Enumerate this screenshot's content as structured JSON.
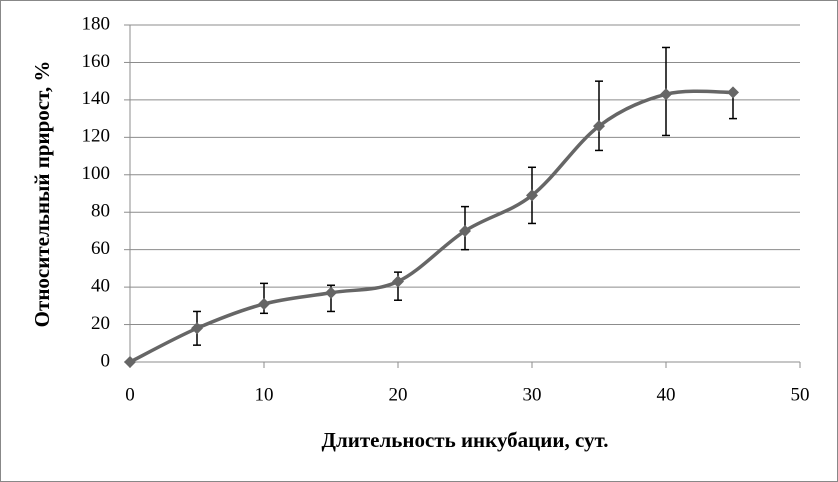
{
  "chart_data": {
    "type": "line",
    "x_label": "Длительность инкубации, сут.",
    "y_label": "Относительный прирост, %",
    "x": [
      0,
      5,
      10,
      15,
      20,
      25,
      30,
      35,
      40,
      45
    ],
    "values": [
      0,
      18,
      31,
      37,
      43,
      70,
      89,
      126,
      143,
      144
    ],
    "err_plus": [
      0,
      9,
      11,
      4,
      5,
      13,
      15,
      24,
      25,
      0
    ],
    "err_minus": [
      0,
      9,
      5,
      10,
      10,
      10,
      15,
      13,
      22,
      14
    ],
    "color": "#666666",
    "xlim": [
      0,
      50
    ],
    "xticks": [
      0,
      10,
      20,
      30,
      40,
      50
    ],
    "ylim": [
      0,
      180
    ],
    "yticks": [
      0,
      20,
      40,
      60,
      80,
      100,
      120,
      140,
      160,
      180
    ],
    "grid": true
  }
}
